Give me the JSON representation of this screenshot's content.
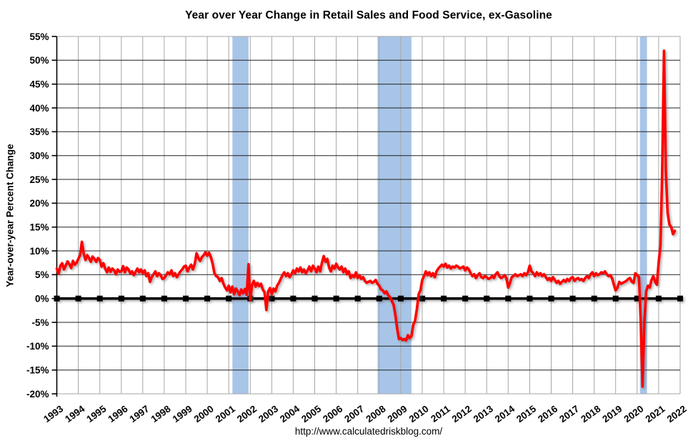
{
  "chart_data": {
    "type": "line",
    "title": "Year over Year Change in Retail Sales and Food Service, ex-Gasoline",
    "ylabel": "Year-over-year Percent Change",
    "xlabel": "",
    "footer_url": "http://www.calculatedriskblog.com/",
    "legend": "none",
    "grid": true,
    "xlim": [
      1993,
      2022
    ],
    "ylim": [
      -20,
      55
    ],
    "y_tick_step": 5,
    "y_tick_labels": [
      "55%",
      "50%",
      "45%",
      "40%",
      "35%",
      "30%",
      "25%",
      "20%",
      "15%",
      "10%",
      "5%",
      "0%",
      "-5%",
      "-10%",
      "-15%",
      "-20%"
    ],
    "x_tick_labels": [
      "1993",
      "1994",
      "1995",
      "1996",
      "1997",
      "1998",
      "1999",
      "2000",
      "2001",
      "2002",
      "2003",
      "2004",
      "2005",
      "2006",
      "2007",
      "2008",
      "2009",
      "2010",
      "2011",
      "2012",
      "2013",
      "2014",
      "2015",
      "2016",
      "2017",
      "2018",
      "2019",
      "2020",
      "2021",
      "2022"
    ],
    "colors": {
      "line": "#FF0000",
      "recession_band": "#A8C5E8",
      "vertical_grid": "#A6A6A6",
      "horizontal_grid": "#202020",
      "zero_line": "#000000",
      "background": "#FFFFFF",
      "text": "#000000"
    },
    "recession_bands": [
      [
        2001.17,
        2001.92
      ],
      [
        2007.92,
        2009.5
      ],
      [
        2020.13,
        2020.46
      ]
    ],
    "zero_line": {
      "value": 0,
      "marker": "annual-black-squares"
    },
    "series": [
      {
        "name": "Year-over-year percent change (monthly)",
        "color": "#FF0000",
        "start_year": 1993,
        "frequency": "monthly",
        "values": [
          6.3,
          5.2,
          6.9,
          7.4,
          6.1,
          6.9,
          7.8,
          7.2,
          6.4,
          7.9,
          7.1,
          7.5,
          8.3,
          9.1,
          11.9,
          9.4,
          8.1,
          9.1,
          8.5,
          7.7,
          8.8,
          8.3,
          7.7,
          8.5,
          8.1,
          6.7,
          7.4,
          6.3,
          5.5,
          6.5,
          5.6,
          6.3,
          5.9,
          5.1,
          6.1,
          5.6,
          5.7,
          6.8,
          5.5,
          6.5,
          6.1,
          5.3,
          5.7,
          4.9,
          5.6,
          6.3,
          5.5,
          6.1,
          5.3,
          5.9,
          4.7,
          5.3,
          3.5,
          4.5,
          5.1,
          5.7,
          4.7,
          5.3,
          4.9,
          4.1,
          4.3,
          4.9,
          5.5,
          5.1,
          5.9,
          4.7,
          5.3,
          4.5,
          5.1,
          5.7,
          6.1,
          6.7,
          6.9,
          5.7,
          6.5,
          7.1,
          6.1,
          7.3,
          9.5,
          8.5,
          7.9,
          8.7,
          9.1,
          9.7,
          9.0,
          9.6,
          8.7,
          7.3,
          5.3,
          4.7,
          4.5,
          3.7,
          4.3,
          3.1,
          2.3,
          1.7,
          2.7,
          1.3,
          2.5,
          0.9,
          2.1,
          1.5,
          0.7,
          1.9,
          1.1,
          2.0,
          0.8,
          7.2,
          -0.4,
          2.9,
          3.7,
          2.5,
          3.3,
          2.6,
          3.1,
          1.9,
          1.3,
          -2.4,
          1.5,
          2.2,
          0.9,
          2.1,
          1.5,
          2.7,
          3.3,
          4.1,
          4.9,
          5.5,
          4.7,
          5.3,
          4.5,
          5.1,
          5.9,
          5.3,
          6.3,
          5.7,
          6.5,
          5.5,
          6.1,
          5.3,
          5.9,
          6.7,
          5.7,
          6.9,
          6.3,
          5.5,
          6.7,
          5.7,
          7.5,
          8.9,
          7.7,
          8.3,
          6.5,
          5.7,
          6.9,
          6.3,
          7.3,
          6.5,
          6.1,
          6.7,
          5.5,
          6.3,
          5.1,
          5.7,
          4.3,
          4.9,
          4.5,
          5.5,
          4.3,
          4.9,
          4.1,
          4.5,
          3.7,
          3.3,
          3.5,
          3.7,
          3.3,
          3.5,
          3.9,
          3.1,
          2.7,
          1.9,
          1.7,
          1.1,
          1.5,
          0.7,
          0.3,
          -0.5,
          -1.3,
          -3.5,
          -6.3,
          -8.5,
          -8.3,
          -8.7,
          -8.5,
          -8.8,
          -7.7,
          -8.3,
          -7.9,
          -5.5,
          -4.7,
          -2.3,
          0.9,
          1.7,
          3.9,
          4.7,
          5.7,
          4.9,
          5.5,
          4.7,
          5.3,
          4.5,
          5.7,
          6.3,
          6.7,
          7.1,
          6.7,
          7.3,
          6.5,
          6.9,
          6.3,
          6.7,
          6.5,
          6.9,
          6.7,
          6.3,
          6.5,
          6.7,
          5.9,
          6.5,
          6.1,
          5.3,
          4.7,
          5.1,
          4.3,
          4.9,
          5.3,
          4.5,
          4.3,
          4.7,
          4.5,
          4.1,
          4.3,
          4.7,
          4.3,
          5.1,
          5.5,
          4.7,
          4.3,
          4.5,
          4.9,
          4.3,
          2.3,
          3.3,
          4.5,
          4.7,
          5.1,
          4.7,
          4.9,
          5.1,
          4.7,
          5.3,
          4.9,
          5.5,
          6.9,
          5.7,
          5.3,
          4.7,
          5.5,
          4.9,
          5.3,
          4.7,
          5.1,
          4.5,
          3.9,
          4.3,
          3.7,
          4.5,
          3.9,
          3.3,
          3.7,
          3.1,
          3.5,
          3.9,
          3.5,
          4.1,
          3.7,
          4.3,
          4.5,
          3.7,
          4.1,
          4.3,
          3.9,
          4.1,
          3.7,
          4.3,
          4.7,
          4.3,
          5.1,
          5.5,
          4.7,
          5.3,
          4.9,
          5.1,
          5.5,
          5.3,
          5.7,
          5.1,
          4.7,
          4.9,
          4.3,
          2.9,
          1.7,
          2.3,
          3.5,
          3.1,
          3.3,
          3.5,
          3.7,
          4.1,
          4.3,
          3.5,
          3.3,
          5.3,
          4.9,
          4.5,
          -4.5,
          -18.5,
          -5.0,
          1.5,
          2.7,
          2.3,
          3.9,
          4.7,
          3.5,
          2.9,
          7.5,
          11.0,
          27.0,
          52.0,
          27.0,
          18.0,
          15.5,
          15.0,
          13.5,
          14.2
        ]
      }
    ]
  }
}
